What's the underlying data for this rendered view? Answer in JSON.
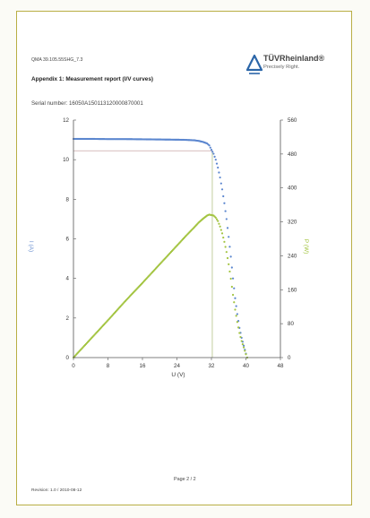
{
  "header": {
    "doc_id": "QMA 39.105.55SHG_7.3",
    "title": "Appendix 1: Measurement report (I/V curves)",
    "serial": "Serial number: 16050A150113120000870001"
  },
  "logo": {
    "name": "TÜVRheinland®",
    "tagline": "Precisely Right.",
    "icon": "tuv-triangle-logo",
    "color": "#2b66a8"
  },
  "footer": {
    "page": "Page 2 / 2",
    "revision": "Revision: 1.0 / 2010-08-12"
  },
  "colors": {
    "current": "#5b86cf",
    "power": "#a3c441",
    "frame": "#b9ae44",
    "guide": "#c9a9a9",
    "guide_v": "#a8b877"
  },
  "chart_data": {
    "type": "scatter",
    "xlabel": "U (V)",
    "ylabel_left": "I (A)",
    "ylabel_right": "P (W)",
    "xlim": [
      0,
      48
    ],
    "ylim_left": [
      0,
      12
    ],
    "ylim_right": [
      0,
      560
    ],
    "x_ticks": [
      0,
      8,
      16,
      24,
      32,
      40,
      48
    ],
    "y_ticks_left": [
      0,
      2,
      4,
      6,
      8,
      10,
      12
    ],
    "y_ticks_right": [
      0,
      80,
      160,
      240,
      320,
      400,
      480,
      560
    ],
    "mpp": {
      "voltage": 32.2,
      "current": 10.45,
      "power": 336
    },
    "series": [
      {
        "axis": "left",
        "x": [
          0,
          4,
          8,
          12,
          16,
          20,
          24,
          26,
          28,
          29,
          30,
          31,
          31.5,
          32,
          32.5,
          33,
          33.5,
          34,
          34.5,
          35,
          35.5,
          36,
          36.5,
          37,
          37.5,
          38,
          38.5,
          39,
          39.5,
          40,
          40.3
        ],
        "values": [
          11.05,
          11.05,
          11.04,
          11.04,
          11.03,
          11.02,
          11.01,
          11.0,
          10.98,
          10.95,
          10.9,
          10.82,
          10.72,
          10.5,
          10.3,
          10.0,
          9.6,
          9.1,
          8.5,
          7.8,
          7.0,
          6.1,
          5.1,
          4.0,
          3.0,
          2.2,
          1.5,
          1.0,
          0.6,
          0.2,
          0
        ]
      },
      {
        "axis": "right",
        "x": [
          0,
          4,
          8,
          12,
          16,
          20,
          24,
          26,
          28,
          29,
          30,
          31,
          31.5,
          32,
          32.5,
          33,
          33.5,
          34,
          34.5,
          35,
          35.5,
          36,
          36.5,
          37,
          37.5,
          38,
          38.5,
          39,
          39.5,
          40,
          40.3
        ],
        "values": [
          0,
          44,
          88,
          133,
          176,
          220,
          264,
          286,
          307,
          318,
          327,
          335,
          337,
          336,
          335,
          330,
          322,
          309,
          293,
          273,
          249,
          220,
          186,
          148,
          113,
          84,
          58,
          39,
          24,
          8,
          0
        ]
      }
    ]
  }
}
